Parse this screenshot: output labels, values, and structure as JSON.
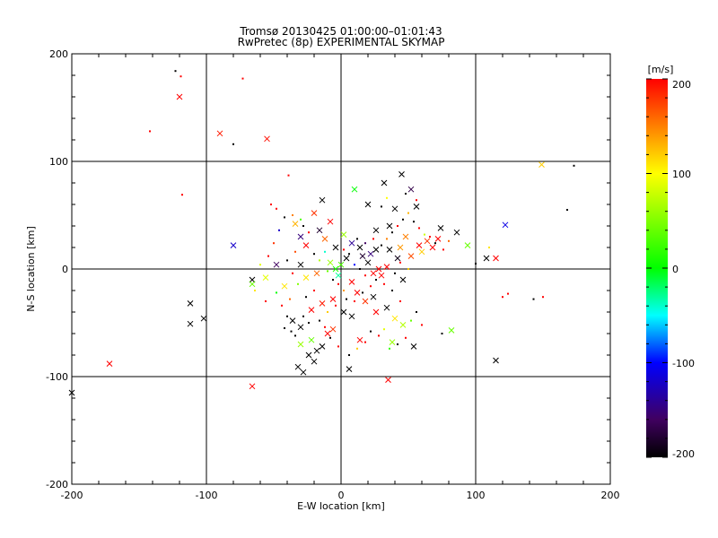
{
  "chart_data": {
    "type": "scatter",
    "title": "Tromsø 20130425 01:00:00–01:01:43",
    "subtitle": "RwPretec (8p) EXPERIMENTAL SKYMAP",
    "xlabel": "E-W location [km]",
    "ylabel": "N-S location [km]",
    "xlim": [
      -200,
      200
    ],
    "ylim": [
      -200,
      200
    ],
    "xticks": [
      "-200",
      "-100",
      "0",
      "100",
      "200"
    ],
    "yticks": [
      "-200",
      "-100",
      "0",
      "100",
      "200"
    ],
    "grid": true,
    "colorbar": {
      "label": "[m/s]",
      "range": [
        -200,
        200
      ],
      "ticks": [
        "200",
        "100",
        "0",
        "-100",
        "-200"
      ],
      "colormap": "rainbow-black-to-red"
    },
    "markers": {
      "cross": "x",
      "dot": "."
    },
    "points": [
      {
        "x": -200,
        "y": -115,
        "v": -200,
        "m": "x"
      },
      {
        "x": -172,
        "y": -88,
        "v": 200,
        "m": "x"
      },
      {
        "x": -120,
        "y": 160,
        "v": 200,
        "m": "x"
      },
      {
        "x": -90,
        "y": 126,
        "v": 190,
        "m": "x"
      },
      {
        "x": -55,
        "y": 121,
        "v": 195,
        "m": "x"
      },
      {
        "x": -112,
        "y": -32,
        "v": -200,
        "m": "x"
      },
      {
        "x": -112,
        "y": -51,
        "v": -200,
        "m": "x"
      },
      {
        "x": -102,
        "y": -46,
        "v": -200,
        "m": "x"
      },
      {
        "x": -66,
        "y": -109,
        "v": 200,
        "m": "x"
      },
      {
        "x": -80,
        "y": 22,
        "v": -120,
        "m": "x"
      },
      {
        "x": -66,
        "y": -10,
        "v": -200,
        "m": "x"
      },
      {
        "x": -66,
        "y": -14,
        "v": 40,
        "m": "x"
      },
      {
        "x": -56,
        "y": -8,
        "v": 90,
        "m": "x"
      },
      {
        "x": -48,
        "y": 4,
        "v": -160,
        "m": "x"
      },
      {
        "x": -42,
        "y": -16,
        "v": 110,
        "m": "x"
      },
      {
        "x": -34,
        "y": 42,
        "v": 130,
        "m": "x"
      },
      {
        "x": -30,
        "y": 30,
        "v": -150,
        "m": "x"
      },
      {
        "x": -26,
        "y": 22,
        "v": 200,
        "m": "x"
      },
      {
        "x": -20,
        "y": 52,
        "v": 180,
        "m": "x"
      },
      {
        "x": -16,
        "y": 36,
        "v": -180,
        "m": "x"
      },
      {
        "x": -14,
        "y": 64,
        "v": -200,
        "m": "x"
      },
      {
        "x": -12,
        "y": 28,
        "v": 160,
        "m": "x"
      },
      {
        "x": -8,
        "y": 44,
        "v": 200,
        "m": "x"
      },
      {
        "x": -4,
        "y": 20,
        "v": -200,
        "m": "x"
      },
      {
        "x": 2,
        "y": 32,
        "v": 60,
        "m": "x"
      },
      {
        "x": 10,
        "y": 74,
        "v": 0,
        "m": "x"
      },
      {
        "x": 20,
        "y": 60,
        "v": -200,
        "m": "x"
      },
      {
        "x": 32,
        "y": 80,
        "v": -200,
        "m": "x"
      },
      {
        "x": 45,
        "y": 88,
        "v": -200,
        "m": "x"
      },
      {
        "x": 52,
        "y": 74,
        "v": -170,
        "m": "x"
      },
      {
        "x": 56,
        "y": 58,
        "v": -200,
        "m": "x"
      },
      {
        "x": 40,
        "y": 56,
        "v": -200,
        "m": "x"
      },
      {
        "x": 36,
        "y": 40,
        "v": -200,
        "m": "x"
      },
      {
        "x": 26,
        "y": 36,
        "v": -200,
        "m": "x"
      },
      {
        "x": 48,
        "y": 30,
        "v": 150,
        "m": "x"
      },
      {
        "x": 58,
        "y": 22,
        "v": 200,
        "m": "x"
      },
      {
        "x": 64,
        "y": 26,
        "v": 180,
        "m": "x"
      },
      {
        "x": 68,
        "y": 20,
        "v": 200,
        "m": "x"
      },
      {
        "x": 72,
        "y": 28,
        "v": 200,
        "m": "x"
      },
      {
        "x": 74,
        "y": 38,
        "v": -200,
        "m": "x"
      },
      {
        "x": 60,
        "y": 16,
        "v": 120,
        "m": "x"
      },
      {
        "x": 52,
        "y": 12,
        "v": 170,
        "m": "x"
      },
      {
        "x": 44,
        "y": 20,
        "v": 140,
        "m": "x"
      },
      {
        "x": 86,
        "y": 34,
        "v": -200,
        "m": "x"
      },
      {
        "x": 94,
        "y": 22,
        "v": 40,
        "m": "x"
      },
      {
        "x": 108,
        "y": 10,
        "v": -200,
        "m": "x"
      },
      {
        "x": 115,
        "y": 10,
        "v": 200,
        "m": "x"
      },
      {
        "x": 122,
        "y": 41,
        "v": -110,
        "m": "x"
      },
      {
        "x": 149,
        "y": 97,
        "v": 120,
        "m": "x"
      },
      {
        "x": 115,
        "y": -85,
        "v": -200,
        "m": "x"
      },
      {
        "x": 82,
        "y": -57,
        "v": 40,
        "m": "x"
      },
      {
        "x": 35,
        "y": -103,
        "v": 200,
        "m": "x"
      },
      {
        "x": 6,
        "y": -93,
        "v": -200,
        "m": "x"
      },
      {
        "x": -28,
        "y": -96,
        "v": -200,
        "m": "x"
      },
      {
        "x": -32,
        "y": -91,
        "v": -200,
        "m": "x"
      },
      {
        "x": -20,
        "y": -86,
        "v": -200,
        "m": "x"
      },
      {
        "x": -24,
        "y": -80,
        "v": -200,
        "m": "x"
      },
      {
        "x": -18,
        "y": -76,
        "v": -200,
        "m": "x"
      },
      {
        "x": -14,
        "y": -72,
        "v": -200,
        "m": "x"
      },
      {
        "x": -22,
        "y": -66,
        "v": 40,
        "m": "x"
      },
      {
        "x": -30,
        "y": -70,
        "v": 60,
        "m": "x"
      },
      {
        "x": -10,
        "y": -60,
        "v": 200,
        "m": "x"
      },
      {
        "x": -6,
        "y": -56,
        "v": 180,
        "m": "x"
      },
      {
        "x": -30,
        "y": -54,
        "v": -200,
        "m": "x"
      },
      {
        "x": -36,
        "y": -48,
        "v": -200,
        "m": "x"
      },
      {
        "x": -22,
        "y": -38,
        "v": 200,
        "m": "x"
      },
      {
        "x": -14,
        "y": -32,
        "v": 190,
        "m": "x"
      },
      {
        "x": -6,
        "y": -28,
        "v": 200,
        "m": "x"
      },
      {
        "x": 2,
        "y": -40,
        "v": -200,
        "m": "x"
      },
      {
        "x": 8,
        "y": -44,
        "v": -200,
        "m": "x"
      },
      {
        "x": 12,
        "y": -22,
        "v": 200,
        "m": "x"
      },
      {
        "x": 18,
        "y": -30,
        "v": 180,
        "m": "x"
      },
      {
        "x": 24,
        "y": -26,
        "v": -200,
        "m": "x"
      },
      {
        "x": 26,
        "y": -40,
        "v": 200,
        "m": "x"
      },
      {
        "x": 34,
        "y": -36,
        "v": -200,
        "m": "x"
      },
      {
        "x": 40,
        "y": -46,
        "v": 110,
        "m": "x"
      },
      {
        "x": 46,
        "y": -52,
        "v": 70,
        "m": "x"
      },
      {
        "x": 54,
        "y": -72,
        "v": -200,
        "m": "x"
      },
      {
        "x": 14,
        "y": -66,
        "v": 200,
        "m": "x"
      },
      {
        "x": 38,
        "y": -68,
        "v": 60,
        "m": "x"
      },
      {
        "x": 30,
        "y": -6,
        "v": 200,
        "m": "x"
      },
      {
        "x": 28,
        "y": 0,
        "v": 200,
        "m": "x"
      },
      {
        "x": 34,
        "y": 2,
        "v": 200,
        "m": "x"
      },
      {
        "x": 24,
        "y": -4,
        "v": 200,
        "m": "x"
      },
      {
        "x": 20,
        "y": 6,
        "v": -200,
        "m": "x"
      },
      {
        "x": 16,
        "y": 12,
        "v": -180,
        "m": "x"
      },
      {
        "x": 22,
        "y": 14,
        "v": -150,
        "m": "x"
      },
      {
        "x": 26,
        "y": 18,
        "v": -200,
        "m": "x"
      },
      {
        "x": 14,
        "y": 20,
        "v": -200,
        "m": "x"
      },
      {
        "x": 8,
        "y": 24,
        "v": -140,
        "m": "x"
      },
      {
        "x": 4,
        "y": 10,
        "v": -200,
        "m": "x"
      },
      {
        "x": 0,
        "y": 4,
        "v": 30,
        "m": "x"
      },
      {
        "x": -4,
        "y": 0,
        "v": 10,
        "m": "x"
      },
      {
        "x": -8,
        "y": 6,
        "v": 60,
        "m": "x"
      },
      {
        "x": -2,
        "y": -6,
        "v": -30,
        "m": "x"
      },
      {
        "x": 8,
        "y": -12,
        "v": 200,
        "m": "x"
      },
      {
        "x": -30,
        "y": 4,
        "v": -200,
        "m": "x"
      },
      {
        "x": -26,
        "y": -8,
        "v": 110,
        "m": "x"
      },
      {
        "x": -18,
        "y": -4,
        "v": 160,
        "m": "x"
      },
      {
        "x": 36,
        "y": 18,
        "v": -200,
        "m": "x"
      },
      {
        "x": 42,
        "y": 10,
        "v": -190,
        "m": "x"
      },
      {
        "x": 46,
        "y": -10,
        "v": -200,
        "m": "x"
      },
      {
        "x": -123,
        "y": 184,
        "v": -200,
        "m": "."
      },
      {
        "x": -119,
        "y": 179,
        "v": 200,
        "m": "."
      },
      {
        "x": -73,
        "y": 177,
        "v": 200,
        "m": "."
      },
      {
        "x": -142,
        "y": 128,
        "v": 200,
        "m": "."
      },
      {
        "x": -80,
        "y": 116,
        "v": -200,
        "m": "."
      },
      {
        "x": -39,
        "y": 87,
        "v": 200,
        "m": "."
      },
      {
        "x": -118,
        "y": 69,
        "v": 200,
        "m": "."
      },
      {
        "x": 173,
        "y": 96,
        "v": -200,
        "m": "."
      },
      {
        "x": 168,
        "y": 55,
        "v": -200,
        "m": "."
      },
      {
        "x": 120,
        "y": -26,
        "v": 200,
        "m": "."
      },
      {
        "x": 124,
        "y": -23,
        "v": 200,
        "m": "."
      },
      {
        "x": 143,
        "y": -28,
        "v": -200,
        "m": "."
      },
      {
        "x": 150,
        "y": -26,
        "v": 200,
        "m": "."
      },
      {
        "x": 110,
        "y": 20,
        "v": 110,
        "m": "."
      },
      {
        "x": 75,
        "y": -60,
        "v": -200,
        "m": "."
      },
      {
        "x": 100,
        "y": 5,
        "v": -200,
        "m": "."
      },
      {
        "x": -42,
        "y": -55,
        "v": -200,
        "m": "."
      },
      {
        "x": -37,
        "y": -58,
        "v": -200,
        "m": "."
      },
      {
        "x": -34,
        "y": -62,
        "v": -200,
        "m": "."
      },
      {
        "x": -40,
        "y": -44,
        "v": -200,
        "m": "."
      },
      {
        "x": -28,
        "y": -44,
        "v": -200,
        "m": "."
      },
      {
        "x": -24,
        "y": -50,
        "v": -200,
        "m": "."
      },
      {
        "x": -44,
        "y": -34,
        "v": 200,
        "m": "."
      },
      {
        "x": -38,
        "y": -28,
        "v": 160,
        "m": "."
      },
      {
        "x": -48,
        "y": -22,
        "v": 0,
        "m": "."
      },
      {
        "x": -56,
        "y": -30,
        "v": 200,
        "m": "."
      },
      {
        "x": -64,
        "y": -20,
        "v": 110,
        "m": "."
      },
      {
        "x": -60,
        "y": 4,
        "v": 90,
        "m": "."
      },
      {
        "x": -54,
        "y": 12,
        "v": 200,
        "m": "."
      },
      {
        "x": -50,
        "y": 24,
        "v": 180,
        "m": "."
      },
      {
        "x": -46,
        "y": 36,
        "v": -120,
        "m": "."
      },
      {
        "x": -42,
        "y": 48,
        "v": -200,
        "m": "."
      },
      {
        "x": -52,
        "y": 60,
        "v": 200,
        "m": "."
      },
      {
        "x": -48,
        "y": 56,
        "v": 200,
        "m": "."
      },
      {
        "x": -36,
        "y": 50,
        "v": 150,
        "m": "."
      },
      {
        "x": -30,
        "y": 46,
        "v": 30,
        "m": "."
      },
      {
        "x": -28,
        "y": 40,
        "v": -200,
        "m": "."
      },
      {
        "x": -24,
        "y": 34,
        "v": 200,
        "m": "."
      },
      {
        "x": -20,
        "y": 14,
        "v": -200,
        "m": "."
      },
      {
        "x": -16,
        "y": 8,
        "v": 70,
        "m": "."
      },
      {
        "x": -12,
        "y": 16,
        "v": -40,
        "m": "."
      },
      {
        "x": -10,
        "y": -2,
        "v": 40,
        "m": "."
      },
      {
        "x": -6,
        "y": -10,
        "v": -200,
        "m": "."
      },
      {
        "x": -2,
        "y": -14,
        "v": 200,
        "m": "."
      },
      {
        "x": 2,
        "y": -20,
        "v": 140,
        "m": "."
      },
      {
        "x": 4,
        "y": -28,
        "v": -200,
        "m": "."
      },
      {
        "x": -4,
        "y": -34,
        "v": 200,
        "m": "."
      },
      {
        "x": -10,
        "y": -40,
        "v": 120,
        "m": "."
      },
      {
        "x": -16,
        "y": -48,
        "v": -200,
        "m": "."
      },
      {
        "x": -12,
        "y": -54,
        "v": 200,
        "m": "."
      },
      {
        "x": -8,
        "y": -64,
        "v": -200,
        "m": "."
      },
      {
        "x": -2,
        "y": -72,
        "v": 200,
        "m": "."
      },
      {
        "x": 6,
        "y": -80,
        "v": -200,
        "m": "."
      },
      {
        "x": 12,
        "y": -74,
        "v": 120,
        "m": "."
      },
      {
        "x": 18,
        "y": -68,
        "v": 200,
        "m": "."
      },
      {
        "x": 22,
        "y": -58,
        "v": -200,
        "m": "."
      },
      {
        "x": 28,
        "y": -62,
        "v": 200,
        "m": "."
      },
      {
        "x": 32,
        "y": -56,
        "v": 90,
        "m": "."
      },
      {
        "x": 36,
        "y": -74,
        "v": 20,
        "m": "."
      },
      {
        "x": 42,
        "y": -70,
        "v": -200,
        "m": "."
      },
      {
        "x": 48,
        "y": -64,
        "v": 200,
        "m": "."
      },
      {
        "x": 52,
        "y": -48,
        "v": 40,
        "m": "."
      },
      {
        "x": 56,
        "y": -40,
        "v": -200,
        "m": "."
      },
      {
        "x": 60,
        "y": -52,
        "v": 200,
        "m": "."
      },
      {
        "x": 44,
        "y": -30,
        "v": 200,
        "m": "."
      },
      {
        "x": 38,
        "y": -20,
        "v": -200,
        "m": "."
      },
      {
        "x": 32,
        "y": -14,
        "v": 200,
        "m": "."
      },
      {
        "x": 26,
        "y": -10,
        "v": -200,
        "m": "."
      },
      {
        "x": 18,
        "y": -6,
        "v": 200,
        "m": "."
      },
      {
        "x": 14,
        "y": 0,
        "v": -200,
        "m": "."
      },
      {
        "x": 10,
        "y": 4,
        "v": -100,
        "m": "."
      },
      {
        "x": 6,
        "y": 14,
        "v": -200,
        "m": "."
      },
      {
        "x": 2,
        "y": 18,
        "v": 200,
        "m": "."
      },
      {
        "x": 12,
        "y": 28,
        "v": -200,
        "m": "."
      },
      {
        "x": 18,
        "y": 24,
        "v": -160,
        "m": "."
      },
      {
        "x": 24,
        "y": 28,
        "v": 200,
        "m": "."
      },
      {
        "x": 30,
        "y": 22,
        "v": -200,
        "m": "."
      },
      {
        "x": 34,
        "y": 28,
        "v": 150,
        "m": "."
      },
      {
        "x": 38,
        "y": 34,
        "v": -200,
        "m": "."
      },
      {
        "x": 42,
        "y": 40,
        "v": 200,
        "m": "."
      },
      {
        "x": 46,
        "y": 46,
        "v": -200,
        "m": "."
      },
      {
        "x": 50,
        "y": 52,
        "v": 130,
        "m": "."
      },
      {
        "x": 54,
        "y": 44,
        "v": -200,
        "m": "."
      },
      {
        "x": 58,
        "y": 38,
        "v": 200,
        "m": "."
      },
      {
        "x": 62,
        "y": 32,
        "v": 80,
        "m": "."
      },
      {
        "x": 66,
        "y": 30,
        "v": 200,
        "m": "."
      },
      {
        "x": 70,
        "y": 24,
        "v": -200,
        "m": "."
      },
      {
        "x": 76,
        "y": 18,
        "v": 200,
        "m": "."
      },
      {
        "x": 80,
        "y": 26,
        "v": 160,
        "m": "."
      },
      {
        "x": 56,
        "y": 64,
        "v": 200,
        "m": "."
      },
      {
        "x": 48,
        "y": 70,
        "v": -200,
        "m": "."
      },
      {
        "x": 34,
        "y": 66,
        "v": 100,
        "m": "."
      },
      {
        "x": 30,
        "y": 58,
        "v": -200,
        "m": "."
      },
      {
        "x": 44,
        "y": 6,
        "v": 200,
        "m": "."
      },
      {
        "x": 50,
        "y": 0,
        "v": 120,
        "m": "."
      },
      {
        "x": 40,
        "y": -4,
        "v": -200,
        "m": "."
      },
      {
        "x": 22,
        "y": -16,
        "v": 200,
        "m": "."
      },
      {
        "x": 16,
        "y": -22,
        "v": -200,
        "m": "."
      },
      {
        "x": 10,
        "y": -30,
        "v": 200,
        "m": "."
      },
      {
        "x": -20,
        "y": -20,
        "v": 200,
        "m": "."
      },
      {
        "x": -26,
        "y": -26,
        "v": -200,
        "m": "."
      },
      {
        "x": -32,
        "y": -14,
        "v": 50,
        "m": "."
      },
      {
        "x": -36,
        "y": -4,
        "v": 200,
        "m": "."
      },
      {
        "x": -40,
        "y": 8,
        "v": -200,
        "m": "."
      },
      {
        "x": -34,
        "y": 16,
        "v": 170,
        "m": "."
      }
    ]
  }
}
